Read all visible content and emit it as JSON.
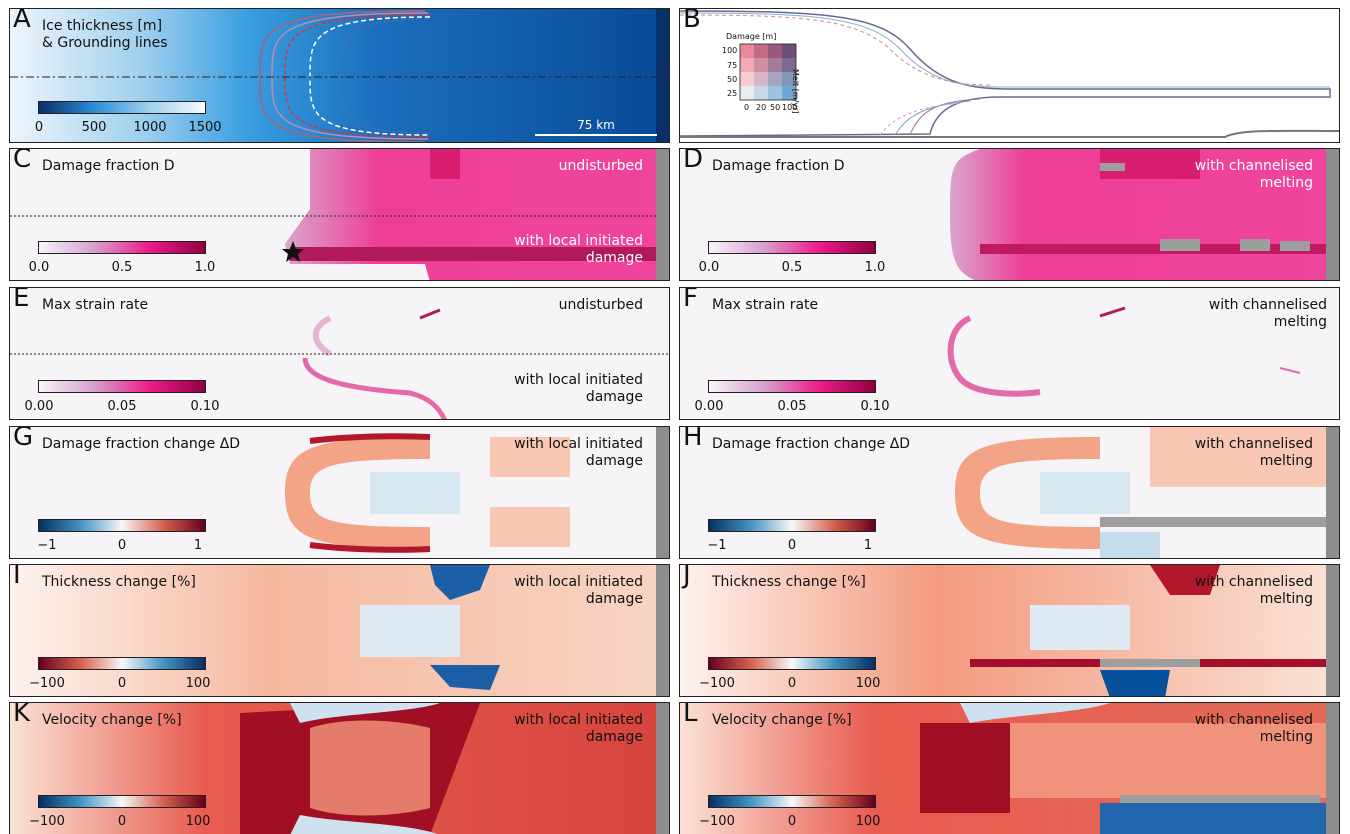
{
  "panels": {
    "A": {
      "letter": "A",
      "title": "Ice thickness [m]\n& Grounding lines",
      "ticks": [
        "0",
        "500",
        "1000",
        "1500"
      ],
      "scale_label": "75 km"
    },
    "B": {
      "letter": "B",
      "legend_title": "Damage [m]",
      "legend_ylabel": "Melt [m/yr]",
      "legend_yticks": [
        "100",
        "75",
        "50",
        "25"
      ],
      "legend_xticks": [
        "0",
        "20",
        "50",
        "100"
      ]
    },
    "C": {
      "letter": "C",
      "title": "Damage fraction D",
      "label_top": "undisturbed",
      "label_bottom": "with local initiated damage",
      "ticks": [
        "0.0",
        "0.5",
        "1.0"
      ]
    },
    "D": {
      "letter": "D",
      "title": "Damage fraction D",
      "label_top": "with channelised melting",
      "ticks": [
        "0.0",
        "0.5",
        "1.0"
      ]
    },
    "E": {
      "letter": "E",
      "title": "Max strain rate",
      "label_top": "undisturbed",
      "label_bottom": "with local initiated damage",
      "ticks": [
        "0.00",
        "0.05",
        "0.10"
      ]
    },
    "F": {
      "letter": "F",
      "title": "Max strain rate",
      "label_top": "with channelised melting",
      "ticks": [
        "0.00",
        "0.05",
        "0.10"
      ]
    },
    "G": {
      "letter": "G",
      "title": "Damage fraction change ΔD",
      "label_top": "with local initiated damage",
      "ticks": [
        "−1",
        "0",
        "1"
      ]
    },
    "H": {
      "letter": "H",
      "title": "Damage fraction change ΔD",
      "label_top": "with channelised melting",
      "ticks": [
        "−1",
        "0",
        "1"
      ]
    },
    "I": {
      "letter": "I",
      "title": "Thickness change [%]",
      "label_top": "with local initiated damage",
      "ticks": [
        "−100",
        "0",
        "100"
      ]
    },
    "J": {
      "letter": "J",
      "title": "Thickness change [%]",
      "label_top": "with channelised melting",
      "ticks": [
        "−100",
        "0",
        "100"
      ]
    },
    "K": {
      "letter": "K",
      "title": "Velocity change [%]",
      "label_top": "with local initiated damage",
      "ticks": [
        "−100",
        "0",
        "100"
      ]
    },
    "L": {
      "letter": "L",
      "title": "Velocity change [%]",
      "label_top": "with channelised melting",
      "ticks": [
        "−100",
        "0",
        "100"
      ]
    }
  },
  "colors": {
    "ice_dark": "#08306b",
    "ice_mid": "#2b8cd6",
    "ice_light": "#f2f7fb",
    "damage_low": "#f7f4f9",
    "damage_mid": "#ee1a8a",
    "damage_high": "#91003f",
    "div_neg": "#08519c",
    "div_pos": "#a50f15"
  }
}
